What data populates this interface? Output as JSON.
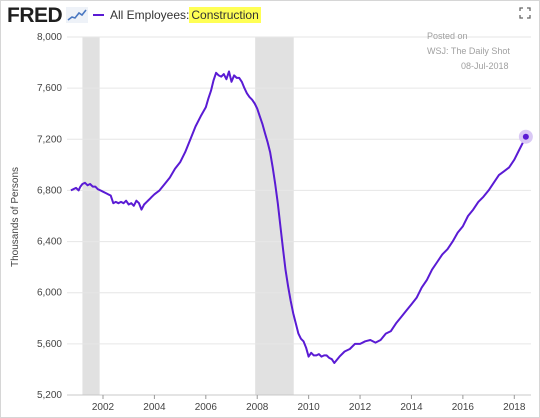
{
  "header": {
    "logo_text": "FRED",
    "series_prefix": "All Employees: ",
    "series_highlight": "Construction"
  },
  "watermark": {
    "line1": "Posted on",
    "line2": "WSJ: The Daily Shot",
    "line3": "08-Jul-2018"
  },
  "colors": {
    "line": "#5a1bd4",
    "recession": "#e1e1e1",
    "grid": "#e6e6e6",
    "axis_text": "#444444",
    "endpoint_halo": "#d9c8f5"
  },
  "icons": {
    "expand": "expand-icon",
    "logo_chart": "sparkline-icon"
  },
  "chart_data": {
    "type": "line",
    "title": "All Employees: Construction",
    "ylabel": "Thousands of Persons",
    "xlabel": "",
    "xlim": [
      2000.6,
      2018.65
    ],
    "ylim": [
      5200,
      8000
    ],
    "yticks": [
      5200,
      5600,
      6000,
      6400,
      6800,
      7200,
      7600,
      8000
    ],
    "ytick_labels": [
      "5,200",
      "5,600",
      "6,000",
      "6,400",
      "6,800",
      "7,200",
      "7,600",
      "8,000"
    ],
    "xticks": [
      2002,
      2004,
      2006,
      2008,
      2010,
      2012,
      2014,
      2016,
      2018
    ],
    "xtick_labels": [
      "2002",
      "2004",
      "2006",
      "2008",
      "2010",
      "2012",
      "2014",
      "2016",
      "2018"
    ],
    "grid": "horizontal",
    "recessions": [
      [
        2001.2,
        2001.87
      ],
      [
        2007.92,
        2009.42
      ]
    ],
    "series": [
      {
        "name": "Construction",
        "x": [
          2000.75,
          2000.85,
          2000.95,
          2001.05,
          2001.12,
          2001.2,
          2001.3,
          2001.4,
          2001.5,
          2001.6,
          2001.7,
          2001.8,
          2001.9,
          2002.0,
          2002.1,
          2002.2,
          2002.3,
          2002.4,
          2002.5,
          2002.6,
          2002.7,
          2002.8,
          2002.9,
          2003.0,
          2003.1,
          2003.2,
          2003.3,
          2003.4,
          2003.5,
          2003.6,
          2003.7,
          2003.8,
          2003.9,
          2004.0,
          2004.2,
          2004.4,
          2004.6,
          2004.8,
          2005.0,
          2005.2,
          2005.4,
          2005.6,
          2005.8,
          2006.0,
          2006.1,
          2006.2,
          2006.3,
          2006.4,
          2006.5,
          2006.6,
          2006.7,
          2006.8,
          2006.9,
          2007.0,
          2007.1,
          2007.2,
          2007.3,
          2007.4,
          2007.5,
          2007.6,
          2007.7,
          2007.8,
          2007.9,
          2008.0,
          2008.1,
          2008.2,
          2008.3,
          2008.4,
          2008.5,
          2008.6,
          2008.7,
          2008.8,
          2008.9,
          2009.0,
          2009.1,
          2009.2,
          2009.3,
          2009.4,
          2009.5,
          2009.6,
          2009.7,
          2009.8,
          2009.9,
          2010.0,
          2010.1,
          2010.2,
          2010.3,
          2010.4,
          2010.5,
          2010.6,
          2010.7,
          2010.8,
          2010.9,
          2011.0,
          2011.2,
          2011.4,
          2011.6,
          2011.8,
          2012.0,
          2012.2,
          2012.4,
          2012.6,
          2012.8,
          2013.0,
          2013.2,
          2013.4,
          2013.6,
          2013.8,
          2014.0,
          2014.2,
          2014.4,
          2014.6,
          2014.8,
          2015.0,
          2015.2,
          2015.4,
          2015.6,
          2015.8,
          2016.0,
          2016.2,
          2016.4,
          2016.6,
          2016.8,
          2017.0,
          2017.2,
          2017.4,
          2017.6,
          2017.8,
          2018.0,
          2018.2,
          2018.45
        ],
        "y": [
          6800,
          6810,
          6820,
          6800,
          6830,
          6850,
          6860,
          6840,
          6850,
          6830,
          6830,
          6810,
          6800,
          6790,
          6780,
          6770,
          6760,
          6700,
          6710,
          6700,
          6710,
          6700,
          6720,
          6690,
          6700,
          6680,
          6720,
          6700,
          6650,
          6690,
          6710,
          6730,
          6750,
          6770,
          6800,
          6850,
          6900,
          6970,
          7020,
          7100,
          7200,
          7300,
          7380,
          7450,
          7520,
          7580,
          7660,
          7720,
          7700,
          7690,
          7710,
          7670,
          7730,
          7650,
          7700,
          7680,
          7680,
          7650,
          7600,
          7560,
          7530,
          7510,
          7480,
          7440,
          7380,
          7320,
          7250,
          7180,
          7100,
          6980,
          6850,
          6700,
          6520,
          6350,
          6180,
          6050,
          5940,
          5840,
          5760,
          5680,
          5640,
          5620,
          5570,
          5500,
          5530,
          5510,
          5510,
          5520,
          5500,
          5510,
          5510,
          5490,
          5480,
          5450,
          5500,
          5540,
          5560,
          5600,
          5600,
          5620,
          5630,
          5610,
          5630,
          5680,
          5700,
          5760,
          5810,
          5860,
          5910,
          5960,
          6040,
          6100,
          6180,
          6240,
          6300,
          6340,
          6400,
          6470,
          6520,
          6600,
          6650,
          6710,
          6750,
          6800,
          6860,
          6920,
          6950,
          6980,
          7040,
          7120,
          7220
        ]
      }
    ],
    "endpoint": {
      "x": 2018.45,
      "y": 7220
    }
  }
}
